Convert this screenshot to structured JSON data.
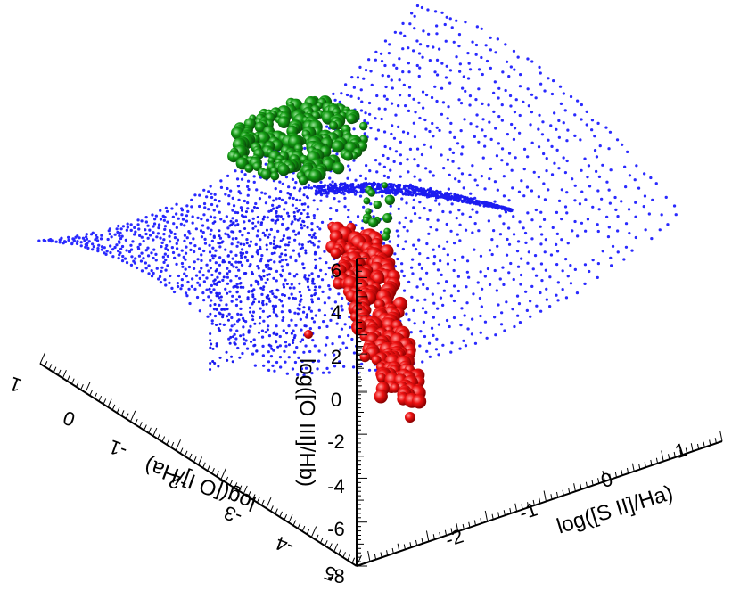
{
  "chart_data": {
    "type": "scatter",
    "dimensions": 3,
    "axes": {
      "x": {
        "label": "log([S II]/Ha)",
        "ticks": [
          "-2",
          "-1",
          "0",
          "1"
        ]
      },
      "y": {
        "label": "log([O I]/Ha)",
        "ticks": [
          "1",
          "0",
          "-1",
          "-2",
          "-3",
          "-4",
          "-5"
        ]
      },
      "z": {
        "label": "log([O III]/Hb)",
        "ticks": [
          "-8",
          "-6",
          "-4",
          "-2",
          "0",
          "2",
          "4",
          "6"
        ]
      }
    },
    "series": [
      {
        "color": "#2222ff",
        "marker": "small dots",
        "shape": "saddle surface"
      },
      {
        "color": "#119911",
        "marker": "spheres",
        "shape": "cluster above surface"
      },
      {
        "color": "#ee1111",
        "marker": "spheres",
        "shape": "cluster below surface"
      }
    ]
  }
}
